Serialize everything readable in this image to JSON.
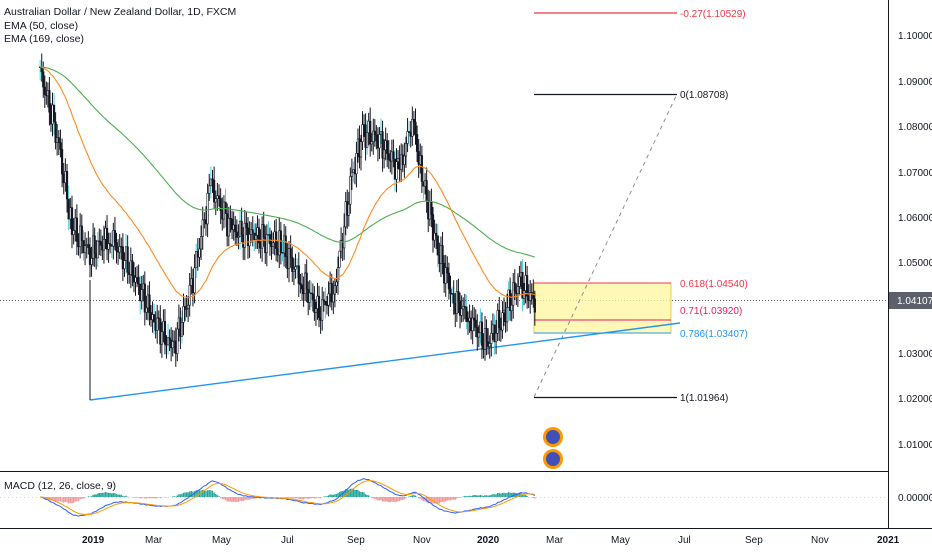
{
  "chart_header": {
    "symbol_title": "Australian Dollar / New Zealand Dollar, 1D, FXCM",
    "indicators": [
      "EMA (50, close)",
      "EMA (169, close)"
    ]
  },
  "price_axis": {
    "ticks": [
      "1.10000",
      "1.09000",
      "1.08000",
      "1.07000",
      "1.06000",
      "1.05000",
      "1.04000",
      "1.03000",
      "1.02000",
      "1.01000"
    ],
    "last_price": "1.04107",
    "last_price_color": "#5d606b"
  },
  "time_axis": {
    "labels": [
      "2019",
      "Mar",
      "May",
      "Jul",
      "Sep",
      "Nov",
      "2020",
      "Mar",
      "May",
      "Jul",
      "Sep",
      "Nov",
      "2021"
    ]
  },
  "macd": {
    "label": "MACD (12, 26, close, 9)",
    "axis_tick": "0.00000"
  },
  "fib_levels": [
    {
      "label": "-0.27(1.10529)",
      "color": "#f23645"
    },
    {
      "label": "0(1.08708)",
      "color": "#131722"
    },
    {
      "label": "0.618(1.04540)",
      "color": "#f23645"
    },
    {
      "label": "0.71(1.03920)",
      "color": "#e91e63"
    },
    {
      "label": "0.786(1.03407)",
      "color": "#2196f3"
    },
    {
      "label": "1(1.01964)",
      "color": "#131722"
    }
  ],
  "colors": {
    "ema50": "#ff8a1f",
    "ema169": "#4caf50",
    "trendline": "#2196f3",
    "fib_zone": "#fff59d",
    "candles": "#131722",
    "wick_highlight": "#4dd0e1"
  },
  "chart_data": {
    "type": "candlestick",
    "instrument": "AUD/NZD",
    "timeframe": "1D",
    "close_series_approx": [
      {
        "x": "2018-11-15",
        "y": 1.092
      },
      {
        "x": "2018-12-01",
        "y": 1.078
      },
      {
        "x": "2018-12-15",
        "y": 1.058
      },
      {
        "x": "2019-01-01",
        "y": 1.052
      },
      {
        "x": "2019-01-20",
        "y": 1.056
      },
      {
        "x": "2019-02-10",
        "y": 1.048
      },
      {
        "x": "2019-03-01",
        "y": 1.038
      },
      {
        "x": "2019-03-20",
        "y": 1.031
      },
      {
        "x": "2019-04-05",
        "y": 1.043
      },
      {
        "x": "2019-04-25",
        "y": 1.067
      },
      {
        "x": "2019-05-15",
        "y": 1.057
      },
      {
        "x": "2019-06-05",
        "y": 1.056
      },
      {
        "x": "2019-06-30",
        "y": 1.054
      },
      {
        "x": "2019-07-20",
        "y": 1.046
      },
      {
        "x": "2019-08-05",
        "y": 1.039
      },
      {
        "x": "2019-08-20",
        "y": 1.045
      },
      {
        "x": "2019-09-05",
        "y": 1.069
      },
      {
        "x": "2019-09-15",
        "y": 1.079
      },
      {
        "x": "2019-10-01",
        "y": 1.077
      },
      {
        "x": "2019-10-20",
        "y": 1.07
      },
      {
        "x": "2019-11-01",
        "y": 1.082
      },
      {
        "x": "2019-11-10",
        "y": 1.069
      },
      {
        "x": "2019-11-25",
        "y": 1.053
      },
      {
        "x": "2019-12-10",
        "y": 1.042
      },
      {
        "x": "2019-12-25",
        "y": 1.038
      },
      {
        "x": "2020-01-10",
        "y": 1.032
      },
      {
        "x": "2020-01-25",
        "y": 1.038
      },
      {
        "x": "2020-02-10",
        "y": 1.046
      },
      {
        "x": "2020-02-26",
        "y": 1.041
      }
    ]
  }
}
